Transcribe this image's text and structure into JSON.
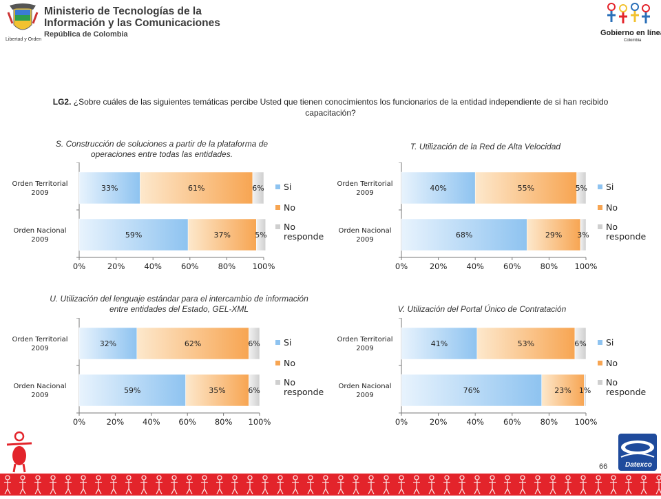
{
  "header": {
    "ministry_line1": "Ministerio de Tecnologías de la",
    "ministry_line2": "Información y las Comunicaciones",
    "ministry_line3": "República de Colombia",
    "motto": "Libertad y Orden",
    "gov_logo_text": "Gobierno en línea",
    "gov_logo_sub": "Colombia"
  },
  "question": {
    "code": "LG2.",
    "text": "¿Sobre cuáles de las siguientes temáticas percibe Usted que tienen conocimientos los funcionarios de la entidad independiente de si han recibido capacitación?"
  },
  "legend": [
    "Si",
    "No",
    "No responde"
  ],
  "colors": {
    "si": "#8ec3f0",
    "no": "#f7a552",
    "nr": "#cfcfcf",
    "footer": "#e3242b"
  },
  "chart_data": [
    {
      "type": "bar",
      "orientation": "horizontal",
      "stacked": true,
      "title": "S. Construcción de soluciones a partir de la plataforma de operaciones entre todas las entidades.",
      "categories": [
        "Orden Territorial 2009",
        "Orden Nacional 2009"
      ],
      "series": [
        {
          "name": "Si",
          "values": [
            33,
            59
          ],
          "labels": [
            "33%",
            "59%"
          ]
        },
        {
          "name": "No",
          "values": [
            61,
            37
          ],
          "labels": [
            "61%",
            "37%"
          ]
        },
        {
          "name": "No responde",
          "values": [
            6,
            5
          ],
          "labels": [
            "6%",
            "5%"
          ]
        }
      ],
      "xticks": [
        "0%",
        "20%",
        "40%",
        "60%",
        "80%",
        "100%"
      ],
      "xlim": [
        0,
        100
      ],
      "legend": "right"
    },
    {
      "type": "bar",
      "orientation": "horizontal",
      "stacked": true,
      "title": "T. Utilización de la Red de Alta Velocidad",
      "categories": [
        "Orden Territorial 2009",
        "Orden Nacional 2009"
      ],
      "series": [
        {
          "name": "Si",
          "values": [
            40,
            68
          ],
          "labels": [
            "40%",
            "68%"
          ]
        },
        {
          "name": "No",
          "values": [
            55,
            29
          ],
          "labels": [
            "55%",
            "29%"
          ]
        },
        {
          "name": "No responde",
          "values": [
            5,
            3
          ],
          "labels": [
            "5%",
            "3%"
          ]
        }
      ],
      "xticks": [
        "0%",
        "20%",
        "40%",
        "60%",
        "80%",
        "100%"
      ],
      "xlim": [
        0,
        100
      ],
      "legend": "right"
    },
    {
      "type": "bar",
      "orientation": "horizontal",
      "stacked": true,
      "title": "U. Utilización del lenguaje estándar para el intercambio de información entre entidades del Estado, GEL-XML",
      "categories": [
        "Orden Territorial 2009",
        "Orden Nacional 2009"
      ],
      "series": [
        {
          "name": "Si",
          "values": [
            32,
            59
          ],
          "labels": [
            "32%",
            "59%"
          ]
        },
        {
          "name": "No",
          "values": [
            62,
            35
          ],
          "labels": [
            "62%",
            "35%"
          ]
        },
        {
          "name": "No responde",
          "values": [
            6,
            6
          ],
          "labels": [
            "6%",
            "6%"
          ]
        }
      ],
      "xticks": [
        "0%",
        "20%",
        "40%",
        "60%",
        "80%",
        "100%"
      ],
      "xlim": [
        0,
        100
      ],
      "legend": "right"
    },
    {
      "type": "bar",
      "orientation": "horizontal",
      "stacked": true,
      "title": "V. Utilización del Portal Único de Contratación",
      "categories": [
        "Orden Territorial 2009",
        "Orden Nacional 2009"
      ],
      "series": [
        {
          "name": "Si",
          "values": [
            41,
            76
          ],
          "labels": [
            "41%",
            "76%"
          ]
        },
        {
          "name": "No",
          "values": [
            53,
            23
          ],
          "labels": [
            "53%",
            "23%"
          ]
        },
        {
          "name": "No responde",
          "values": [
            6,
            1
          ],
          "labels": [
            "6%",
            "1%"
          ]
        }
      ],
      "xticks": [
        "0%",
        "20%",
        "40%",
        "60%",
        "80%",
        "100%"
      ],
      "xlim": [
        0,
        100
      ],
      "legend": "right"
    }
  ],
  "page_number": "66",
  "footer_logo": "Datexco"
}
